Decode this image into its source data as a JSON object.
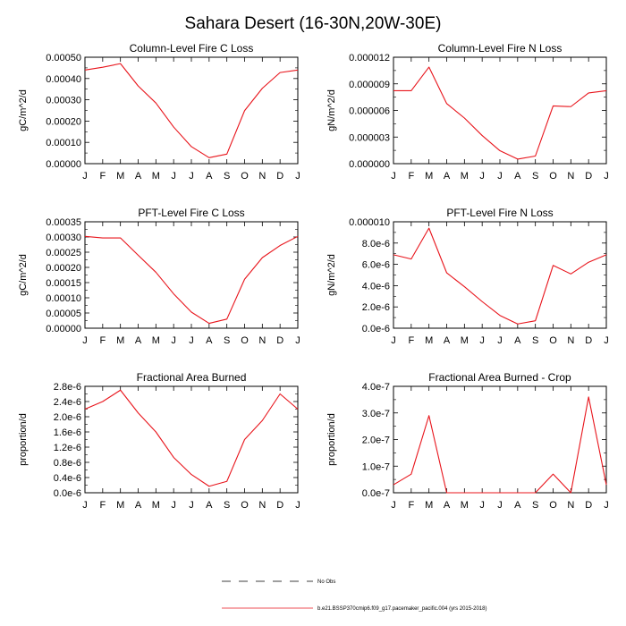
{
  "title": "Sahara Desert (16-30N,20W-30E)",
  "months": [
    "J",
    "F",
    "M",
    "A",
    "M",
    "J",
    "J",
    "A",
    "S",
    "O",
    "N",
    "D",
    "J"
  ],
  "colors": {
    "model": "#e8141b",
    "frame": "#000000"
  },
  "legend": {
    "obs_label": "No Obs",
    "model_label": "b.e21.BSSP370cmip6.f09_g17.pacemaker_pacific.004 (yrs 2015-2018)"
  },
  "chart_data": [
    {
      "type": "line",
      "title": "Column-Level Fire C Loss",
      "ylabel": "gC/m^2/d",
      "ylim": [
        0,
        0.0005
      ],
      "yticks": [
        "0.00000",
        "0.00010",
        "0.00020",
        "0.00030",
        "0.00040",
        "0.00050"
      ],
      "series": [
        {
          "values": [
            0.00044,
            0.000453,
            0.00047,
            0.000365,
            0.000285,
            0.000172,
            8e-05,
            2.8e-05,
            4.5e-05,
            0.000249,
            0.000354,
            0.000428,
            0.00044
          ]
        }
      ]
    },
    {
      "type": "line",
      "title": "Column-Level Fire N Loss",
      "ylabel": "gN/m^2/d",
      "ylim": [
        0,
        1.4e-05
      ],
      "yticks": [
        "0.000000",
        "0.000003",
        "0.000006",
        "0.000009",
        "0.000012"
      ],
      "series": [
        {
          "values": [
            9.6e-06,
            9.6e-06,
            1.27e-05,
            7.9e-06,
            6e-06,
            3.7e-06,
            1.7e-06,
            6e-07,
            1e-06,
            7.6e-06,
            7.5e-06,
            9.3e-06,
            9.6e-06
          ]
        }
      ]
    },
    {
      "type": "line",
      "title": "PFT-Level Fire C Loss",
      "ylabel": "gC/m^2/d",
      "ylim": [
        0,
        0.00035
      ],
      "yticks": [
        "0.00000",
        "0.00005",
        "0.00010",
        "0.00015",
        "0.00020",
        "0.00025",
        "0.00030",
        "0.00035"
      ],
      "series": [
        {
          "values": [
            0.000302,
            0.000297,
            0.000297,
            0.00024,
            0.000184,
            0.000113,
            5.3e-05,
            1.6e-05,
            3e-05,
            0.000161,
            0.000232,
            0.000272,
            0.000302
          ]
        }
      ]
    },
    {
      "type": "line",
      "title": "PFT-Level Fire N Loss",
      "ylabel": "gN/m^2/d",
      "ylim": [
        0,
        1e-05
      ],
      "yticks": [
        "0.0e-6",
        "2.0e-6",
        "4.0e-6",
        "6.0e-6",
        "8.0e-6",
        "0.000010"
      ],
      "series": [
        {
          "values": [
            6.9e-06,
            6.5e-06,
            9.4e-06,
            5.2e-06,
            3.9e-06,
            2.5e-06,
            1.2e-06,
            4e-07,
            7e-07,
            5.9e-06,
            5.1e-06,
            6.2e-06,
            6.9e-06
          ]
        }
      ]
    },
    {
      "type": "line",
      "title": "Fractional Area Burned",
      "ylabel": "proportion/d",
      "ylim": [
        0,
        2.8e-06
      ],
      "yticks": [
        "0.0e-6",
        "0.4e-6",
        "0.8e-6",
        "1.2e-6",
        "1.6e-6",
        "2.0e-6",
        "2.4e-6",
        "2.8e-6"
      ],
      "series": [
        {
          "values": [
            2.2e-06,
            2.4e-06,
            2.7e-06,
            2.1e-06,
            1.6e-06,
            9.3e-07,
            4.8e-07,
            1.7e-07,
            3e-07,
            1.4e-06,
            1.9e-06,
            2.6e-06,
            2.2e-06
          ]
        }
      ]
    },
    {
      "type": "line",
      "title": "Fractional Area Burned - Crop",
      "ylabel": "proportion/d",
      "ylim": [
        0,
        4e-07
      ],
      "yticks": [
        "0.0e-7",
        "1.0e-7",
        "2.0e-7",
        "3.0e-7",
        "4.0e-7"
      ],
      "series": [
        {
          "values": [
            3e-08,
            7e-08,
            2.9e-07,
            0,
            0,
            0,
            0,
            0,
            0,
            7e-08,
            0,
            3.6e-07,
            3e-08
          ]
        }
      ]
    }
  ]
}
